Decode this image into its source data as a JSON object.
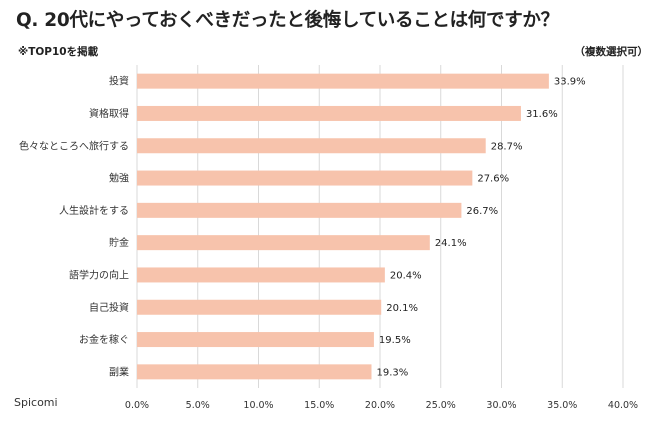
{
  "header": {
    "title": "Q. 20代にやっておくべきだったと後悔していることは何ですか？",
    "note": "※TOP10を掲載",
    "multi_select": "（複数選択可）"
  },
  "brand": "Spicomi",
  "chart_data": {
    "type": "bar",
    "orientation": "horizontal",
    "categories": [
      "投資",
      "資格取得",
      "色々なところへ旅行する",
      "勉強",
      "人生設計をする",
      "貯金",
      "語学力の向上",
      "自己投資",
      "お金を稼ぐ",
      "副業"
    ],
    "values": [
      33.9,
      31.6,
      28.7,
      27.6,
      26.7,
      24.1,
      20.4,
      20.1,
      19.5,
      19.3
    ],
    "value_labels": [
      "33.9%",
      "31.6%",
      "28.7%",
      "27.6%",
      "26.7%",
      "24.1%",
      "20.4%",
      "20.1%",
      "19.5%",
      "19.3%"
    ],
    "x_ticks": [
      "0.0%",
      "5.0%",
      "10.0%",
      "15.0%",
      "20.0%",
      "25.0%",
      "30.0%",
      "35.0%",
      "40.0%"
    ],
    "xlim": [
      0,
      40
    ],
    "grid": true,
    "colors": {
      "bar": "#f7c3ac",
      "grid": "#d9d9d9"
    }
  }
}
